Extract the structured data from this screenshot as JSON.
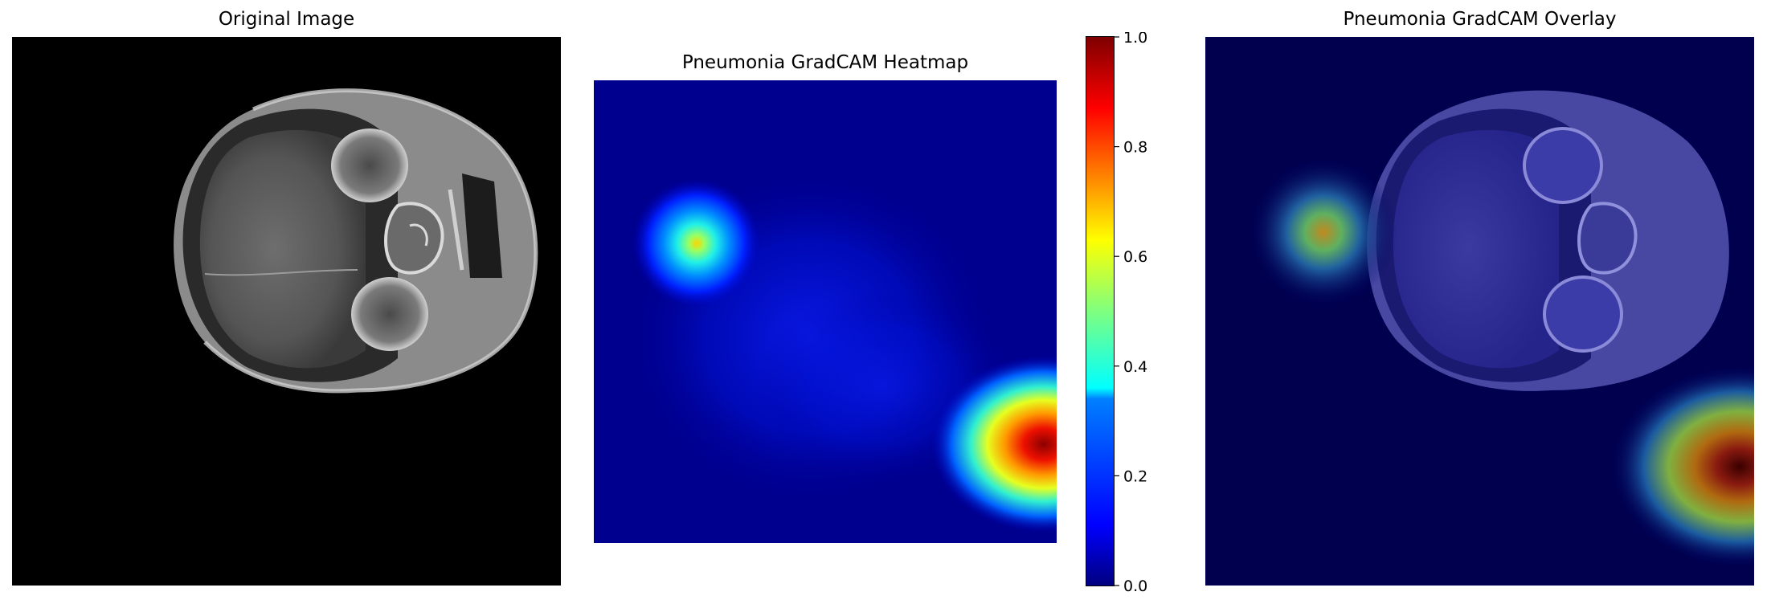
{
  "panels": {
    "original": {
      "title": "Original Image"
    },
    "heatmap": {
      "title": "Pneumonia GradCAM Heatmap"
    },
    "overlay": {
      "title": "Pneumonia GradCAM Overlay"
    }
  },
  "chart_data": {
    "type": "heatmap",
    "colormap": "jet",
    "colorbar": {
      "ticks": [
        {
          "value": 0.0,
          "label": "0.0"
        },
        {
          "value": 0.2,
          "label": "0.2"
        },
        {
          "value": 0.4,
          "label": "0.4"
        },
        {
          "value": 0.6,
          "label": "0.6"
        },
        {
          "value": 0.8,
          "label": "0.8"
        },
        {
          "value": 1.0,
          "label": "1.0"
        }
      ],
      "range": [
        0,
        1
      ]
    },
    "hotspots": [
      {
        "region": "left-upper",
        "peak": 0.65
      },
      {
        "region": "right-lower",
        "peak": 1.0
      },
      {
        "region": "center",
        "peak": 0.15
      }
    ]
  }
}
